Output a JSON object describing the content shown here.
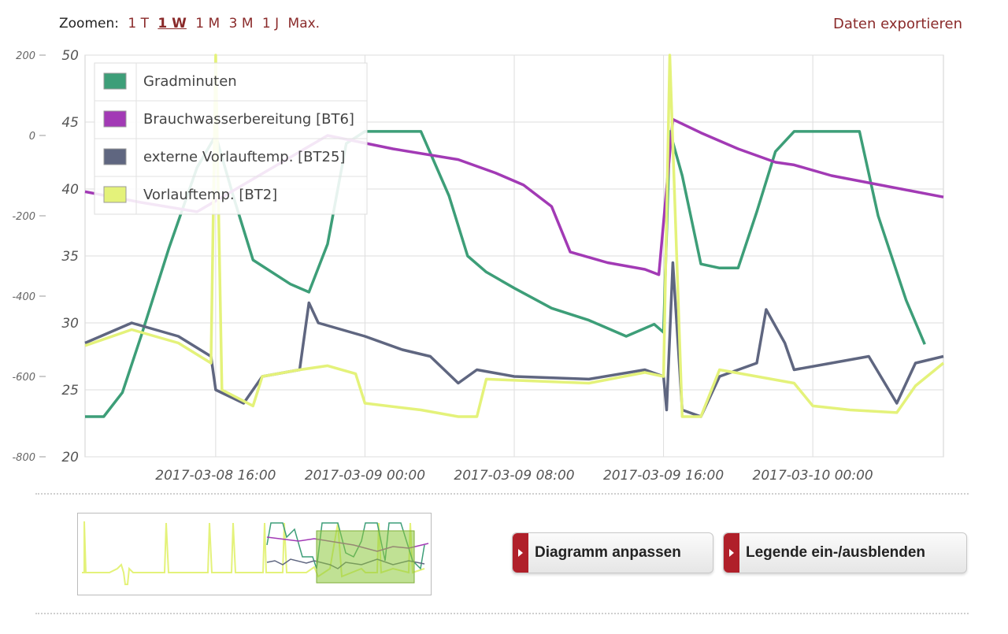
{
  "toolbar": {
    "zoom_label": "Zoomen:",
    "zoom_options": [
      "1 T",
      "1 W",
      "1 M",
      "3 M",
      "1 J",
      "Max."
    ],
    "active_zoom": "1 W",
    "export_label": "Daten exportieren"
  },
  "buttons": {
    "adjust_chart": "Diagramm anpassen",
    "toggle_legend": "Legende ein-/ausblenden"
  },
  "colors": {
    "gradminuten": "#3d9e78",
    "brauchwasser": "#a23ab5",
    "extern": "#5f6680",
    "vorlauf": "#e4f27a",
    "link": "#8a2a2a",
    "button_tab": "#b0202a"
  },
  "chart_data": {
    "type": "line",
    "x_tick_labels": [
      "2017-03-08 16:00",
      "2017-03-09 00:00",
      "2017-03-09 08:00",
      "2017-03-09 16:00",
      "2017-03-10 00:00"
    ],
    "x_range": [
      "2017-03-08 09:00",
      "2017-03-10 07:00"
    ],
    "y_left_outer": {
      "ticks": [
        "200",
        "0",
        "-200",
        "-400",
        "-600",
        "-800"
      ],
      "range": [
        -800,
        200
      ]
    },
    "y_left_inner": {
      "ticks": [
        "50",
        "45",
        "40",
        "35",
        "30",
        "25",
        "20"
      ],
      "range": [
        20,
        50
      ]
    },
    "grid": true,
    "legend_position": "top-left",
    "series": [
      {
        "name": "Gradminuten",
        "axis": "outer",
        "color": "#3d9e78",
        "points": [
          [
            "2017-03-08 09:00",
            -700
          ],
          [
            "2017-03-08 10:00",
            -700
          ],
          [
            "2017-03-08 11:00",
            -640
          ],
          [
            "2017-03-08 12:00",
            -500
          ],
          [
            "2017-03-08 13:30",
            -280
          ],
          [
            "2017-03-08 15:00",
            -80
          ],
          [
            "2017-03-08 16:00",
            0
          ],
          [
            "2017-03-08 17:00",
            -160
          ],
          [
            "2017-03-08 18:00",
            -310
          ],
          [
            "2017-03-08 20:00",
            -370
          ],
          [
            "2017-03-08 21:00",
            -390
          ],
          [
            "2017-03-08 22:00",
            -270
          ],
          [
            "2017-03-08 23:00",
            -20
          ],
          [
            "2017-03-09 00:00",
            10
          ],
          [
            "2017-03-09 01:30",
            10
          ],
          [
            "2017-03-09 03:00",
            10
          ],
          [
            "2017-03-09 04:30",
            -150
          ],
          [
            "2017-03-09 05:30",
            -300
          ],
          [
            "2017-03-09 06:30",
            -340
          ],
          [
            "2017-03-09 08:00",
            -380
          ],
          [
            "2017-03-09 10:00",
            -430
          ],
          [
            "2017-03-09 12:00",
            -460
          ],
          [
            "2017-03-09 14:00",
            -500
          ],
          [
            "2017-03-09 15:30",
            -470
          ],
          [
            "2017-03-09 16:00",
            -490
          ],
          [
            "2017-03-09 16:20",
            10
          ],
          [
            "2017-03-09 17:00",
            -100
          ],
          [
            "2017-03-09 18:00",
            -320
          ],
          [
            "2017-03-09 19:00",
            -330
          ],
          [
            "2017-03-09 20:00",
            -330
          ],
          [
            "2017-03-09 21:00",
            -190
          ],
          [
            "2017-03-09 22:00",
            -40
          ],
          [
            "2017-03-09 23:00",
            10
          ],
          [
            "2017-03-10 01:00",
            10
          ],
          [
            "2017-03-10 02:30",
            10
          ],
          [
            "2017-03-10 03:30",
            -200
          ],
          [
            "2017-03-10 05:00",
            -410
          ],
          [
            "2017-03-10 06:00",
            -520
          ]
        ]
      },
      {
        "name": "Brauchwasserbereitung [BT6]",
        "axis": "inner",
        "color": "#a23ab5",
        "points": [
          [
            "2017-03-08 09:00",
            39.8
          ],
          [
            "2017-03-08 12:00",
            39.0
          ],
          [
            "2017-03-08 15:00",
            38.3
          ],
          [
            "2017-03-08 22:00",
            44.0
          ],
          [
            "2017-03-09 01:30",
            43.0
          ],
          [
            "2017-03-09 05:00",
            42.2
          ],
          [
            "2017-03-09 07:00",
            41.2
          ],
          [
            "2017-03-09 08:30",
            40.3
          ],
          [
            "2017-03-09 10:00",
            38.7
          ],
          [
            "2017-03-09 11:00",
            35.3
          ],
          [
            "2017-03-09 13:00",
            34.5
          ],
          [
            "2017-03-09 15:00",
            34.0
          ],
          [
            "2017-03-09 15:45",
            33.6
          ],
          [
            "2017-03-09 16:30",
            45.2
          ],
          [
            "2017-03-09 18:00",
            44.2
          ],
          [
            "2017-03-09 20:00",
            43.0
          ],
          [
            "2017-03-09 22:00",
            42.0
          ],
          [
            "2017-03-09 23:00",
            41.8
          ],
          [
            "2017-03-10 01:00",
            41.0
          ],
          [
            "2017-03-10 04:00",
            40.2
          ],
          [
            "2017-03-10 07:00",
            39.4
          ]
        ]
      },
      {
        "name": "externe Vorlauftemp. [BT25]",
        "axis": "inner",
        "color": "#5f6680",
        "points": [
          [
            "2017-03-08 09:00",
            28.5
          ],
          [
            "2017-03-08 11:30",
            30.0
          ],
          [
            "2017-03-08 14:00",
            29.0
          ],
          [
            "2017-03-08 15:45",
            27.5
          ],
          [
            "2017-03-08 16:00",
            25.0
          ],
          [
            "2017-03-08 17:30",
            24.0
          ],
          [
            "2017-03-08 18:30",
            26.0
          ],
          [
            "2017-03-08 20:30",
            26.5
          ],
          [
            "2017-03-08 21:00",
            31.5
          ],
          [
            "2017-03-08 21:30",
            30.0
          ],
          [
            "2017-03-09 00:00",
            29.0
          ],
          [
            "2017-03-09 02:00",
            28.0
          ],
          [
            "2017-03-09 03:30",
            27.5
          ],
          [
            "2017-03-09 05:00",
            25.5
          ],
          [
            "2017-03-09 06:00",
            26.5
          ],
          [
            "2017-03-09 08:00",
            26.0
          ],
          [
            "2017-03-09 12:00",
            25.8
          ],
          [
            "2017-03-09 15:00",
            26.5
          ],
          [
            "2017-03-09 16:00",
            26.0
          ],
          [
            "2017-03-09 16:10",
            23.5
          ],
          [
            "2017-03-09 16:30",
            34.5
          ],
          [
            "2017-03-09 17:00",
            23.5
          ],
          [
            "2017-03-09 18:00",
            23.0
          ],
          [
            "2017-03-09 19:00",
            26.0
          ],
          [
            "2017-03-09 21:00",
            27.0
          ],
          [
            "2017-03-09 21:30",
            31.0
          ],
          [
            "2017-03-09 22:30",
            28.5
          ],
          [
            "2017-03-09 23:00",
            26.5
          ],
          [
            "2017-03-10 01:00",
            27.0
          ],
          [
            "2017-03-10 03:00",
            27.5
          ],
          [
            "2017-03-10 04:30",
            24.0
          ],
          [
            "2017-03-10 05:30",
            27.0
          ],
          [
            "2017-03-10 07:00",
            27.5
          ]
        ]
      },
      {
        "name": "Vorlauftemp. [BT2]",
        "axis": "inner",
        "color": "#e4f27a",
        "points": [
          [
            "2017-03-08 09:00",
            28.3
          ],
          [
            "2017-03-08 11:30",
            29.5
          ],
          [
            "2017-03-08 14:00",
            28.5
          ],
          [
            "2017-03-08 15:45",
            27.0
          ],
          [
            "2017-03-08 16:00",
            50.0
          ],
          [
            "2017-03-08 16:20",
            25.0
          ],
          [
            "2017-03-08 18:00",
            23.8
          ],
          [
            "2017-03-08 18:30",
            26.0
          ],
          [
            "2017-03-08 20:30",
            26.5
          ],
          [
            "2017-03-08 22:00",
            26.8
          ],
          [
            "2017-03-08 23:30",
            26.2
          ],
          [
            "2017-03-09 00:00",
            24.0
          ],
          [
            "2017-03-09 03:00",
            23.5
          ],
          [
            "2017-03-09 05:00",
            23.0
          ],
          [
            "2017-03-09 06:00",
            23.0
          ],
          [
            "2017-03-09 06:30",
            25.8
          ],
          [
            "2017-03-09 12:00",
            25.5
          ],
          [
            "2017-03-09 15:00",
            26.3
          ],
          [
            "2017-03-09 16:00",
            26.0
          ],
          [
            "2017-03-09 16:20",
            50.0
          ],
          [
            "2017-03-09 17:00",
            23.0
          ],
          [
            "2017-03-09 18:00",
            23.0
          ],
          [
            "2017-03-09 19:00",
            26.5
          ],
          [
            "2017-03-09 21:00",
            26.0
          ],
          [
            "2017-03-09 23:00",
            25.5
          ],
          [
            "2017-03-10 00:00",
            23.8
          ],
          [
            "2017-03-10 02:00",
            23.5
          ],
          [
            "2017-03-10 04:30",
            23.3
          ],
          [
            "2017-03-10 05:30",
            25.3
          ],
          [
            "2017-03-10 07:00",
            27.0
          ]
        ]
      }
    ],
    "navigator_window": [
      "2017-03-08 09:00",
      "2017-03-10 07:00"
    ]
  }
}
